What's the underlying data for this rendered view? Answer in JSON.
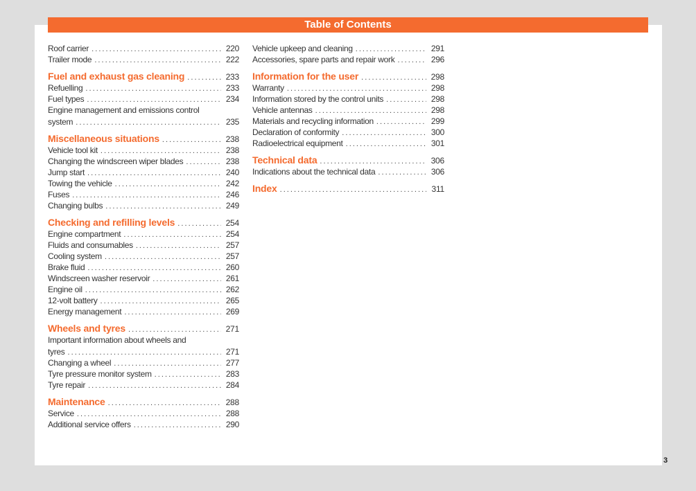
{
  "header": {
    "title": "Table of Contents"
  },
  "page_number": "3",
  "colors": {
    "accent": "#f46b2f",
    "background": "#dedede"
  },
  "columns": [
    [
      {
        "type": "item",
        "label": "Roof carrier",
        "page": "220"
      },
      {
        "type": "item",
        "label": "Trailer mode",
        "page": "222"
      },
      {
        "type": "heading",
        "label": "Fuel and exhaust gas cleaning",
        "page": "233"
      },
      {
        "type": "item",
        "label": "Refuelling",
        "page": "233"
      },
      {
        "type": "item",
        "label": "Fuel types",
        "page": "234"
      },
      {
        "type": "item",
        "label": "Engine management and emissions control",
        "cont": "system",
        "page": "235"
      },
      {
        "type": "heading",
        "label": "Miscellaneous situations",
        "page": "238"
      },
      {
        "type": "item",
        "label": "Vehicle tool kit",
        "page": "238"
      },
      {
        "type": "item",
        "label": "Changing the windscreen wiper blades",
        "page": "238"
      },
      {
        "type": "item",
        "label": "Jump start",
        "page": "240"
      },
      {
        "type": "item",
        "label": "Towing the vehicle",
        "page": "242"
      },
      {
        "type": "item",
        "label": "Fuses",
        "page": "246"
      },
      {
        "type": "item",
        "label": "Changing bulbs",
        "page": "249"
      },
      {
        "type": "heading",
        "label": "Checking and refilling levels",
        "page": "254"
      },
      {
        "type": "item",
        "label": "Engine compartment",
        "page": "254"
      },
      {
        "type": "item",
        "label": "Fluids and consumables",
        "page": "257"
      },
      {
        "type": "item",
        "label": "Cooling system",
        "page": "257"
      },
      {
        "type": "item",
        "label": "Brake fluid",
        "page": "260"
      },
      {
        "type": "item",
        "label": "Windscreen washer reservoir",
        "page": "261"
      },
      {
        "type": "item",
        "label": "Engine oil",
        "page": "262"
      },
      {
        "type": "item",
        "label": "12-volt battery",
        "page": "265"
      },
      {
        "type": "item",
        "label": "Energy management",
        "page": "269"
      },
      {
        "type": "heading",
        "label": "Wheels and tyres",
        "page": "271"
      },
      {
        "type": "item",
        "label": "Important information about wheels and",
        "cont": "tyres",
        "page": "271"
      },
      {
        "type": "item",
        "label": "Changing a wheel",
        "page": "277"
      },
      {
        "type": "item",
        "label": "Tyre pressure monitor system",
        "page": "283"
      },
      {
        "type": "item",
        "label": "Tyre repair",
        "page": "284"
      },
      {
        "type": "heading",
        "label": "Maintenance",
        "page": "288"
      },
      {
        "type": "item",
        "label": "Service",
        "page": "288"
      },
      {
        "type": "item",
        "label": "Additional service offers",
        "page": "290"
      }
    ],
    [
      {
        "type": "item",
        "label": "Vehicle upkeep and cleaning",
        "page": "291"
      },
      {
        "type": "item",
        "label": "Accessories, spare parts and repair work",
        "page": "296"
      },
      {
        "type": "heading",
        "label": "Information for the user",
        "page": "298"
      },
      {
        "type": "item",
        "label": "Warranty",
        "page": "298"
      },
      {
        "type": "item",
        "label": "Information stored by the control units",
        "page": "298"
      },
      {
        "type": "item",
        "label": "Vehicle antennas",
        "page": "298"
      },
      {
        "type": "item",
        "label": "Materials and recycling information",
        "page": "299"
      },
      {
        "type": "item",
        "label": "Declaration of conformity",
        "page": "300"
      },
      {
        "type": "item",
        "label": "Radioelectrical equipment",
        "page": "301"
      },
      {
        "type": "heading",
        "label": "Technical data",
        "page": "306"
      },
      {
        "type": "item",
        "label": "Indications about the technical data",
        "page": "306"
      },
      {
        "type": "heading",
        "label": "Index",
        "page": "311"
      }
    ]
  ]
}
